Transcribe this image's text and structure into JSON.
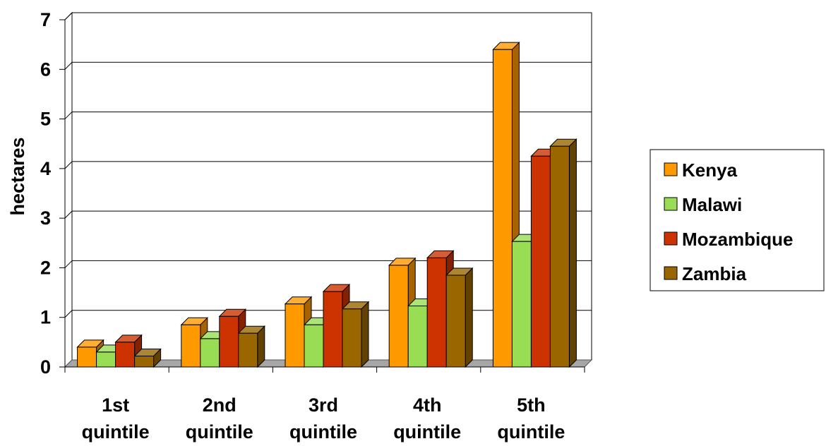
{
  "chart_data": {
    "type": "bar",
    "categories": [
      [
        "1st",
        "quintile"
      ],
      [
        "2nd",
        "quintile"
      ],
      [
        "3rd",
        "quintile"
      ],
      [
        "4th",
        "quintile"
      ],
      [
        "5th",
        "quintile"
      ]
    ],
    "series": [
      {
        "name": "Kenya",
        "values": [
          0.4,
          0.85,
          1.27,
          2.05,
          6.4
        ],
        "color": "#FF9900"
      },
      {
        "name": "Malawi",
        "values": [
          0.3,
          0.57,
          0.85,
          1.23,
          2.53
        ],
        "color": "#99DD55"
      },
      {
        "name": "Mozambique",
        "values": [
          0.5,
          1.02,
          1.52,
          2.2,
          4.25
        ],
        "color": "#CC3300"
      },
      {
        "name": "Zambia",
        "values": [
          0.22,
          0.68,
          1.17,
          1.85,
          4.45
        ],
        "color": "#996600"
      }
    ],
    "ylabel": "hectares",
    "ylim": [
      0,
      7
    ],
    "yticks": [
      0,
      1,
      2,
      3,
      4,
      5,
      6,
      7
    ],
    "grid": true,
    "legend_position": "right",
    "style": "3d-clustered-column"
  }
}
